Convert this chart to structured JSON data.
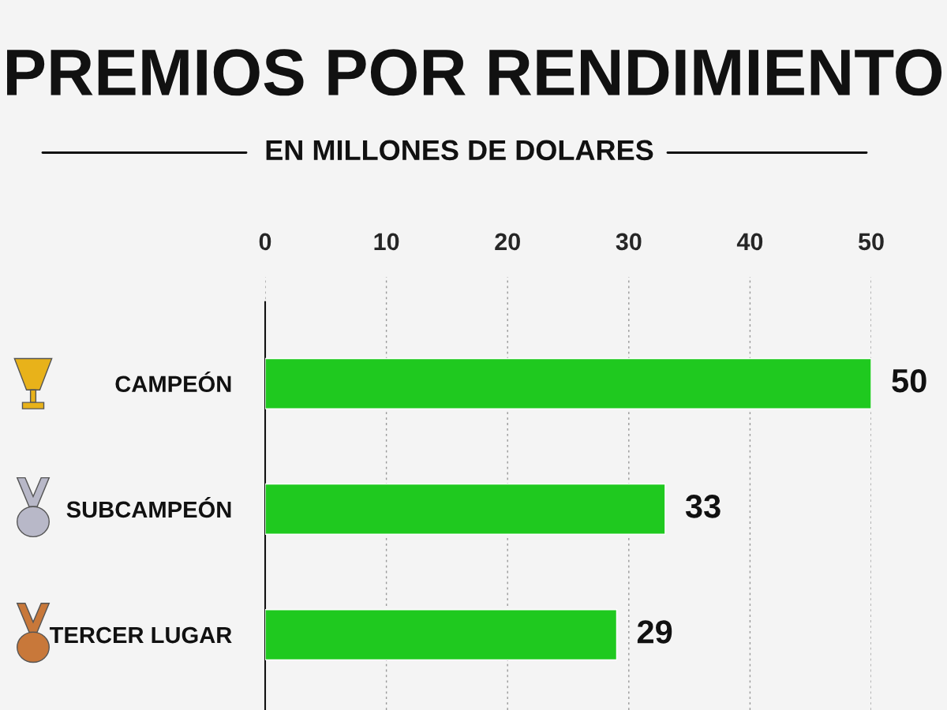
{
  "chart_data": {
    "type": "bar",
    "orientation": "horizontal",
    "title": "PREMIOS POR RENDIMIENTO",
    "subtitle": "EN MILLONES DE DOLARES",
    "categories": [
      "CAMPEÓN",
      "SUBCAMPEÓN",
      "TERCER LUGAR"
    ],
    "values": [
      50,
      33,
      29
    ],
    "color": "#1fc91f",
    "xlim": [
      0,
      50
    ],
    "xticks": [
      0,
      10,
      20,
      30,
      40,
      50
    ],
    "grid": "x",
    "data_labels": true
  }
}
